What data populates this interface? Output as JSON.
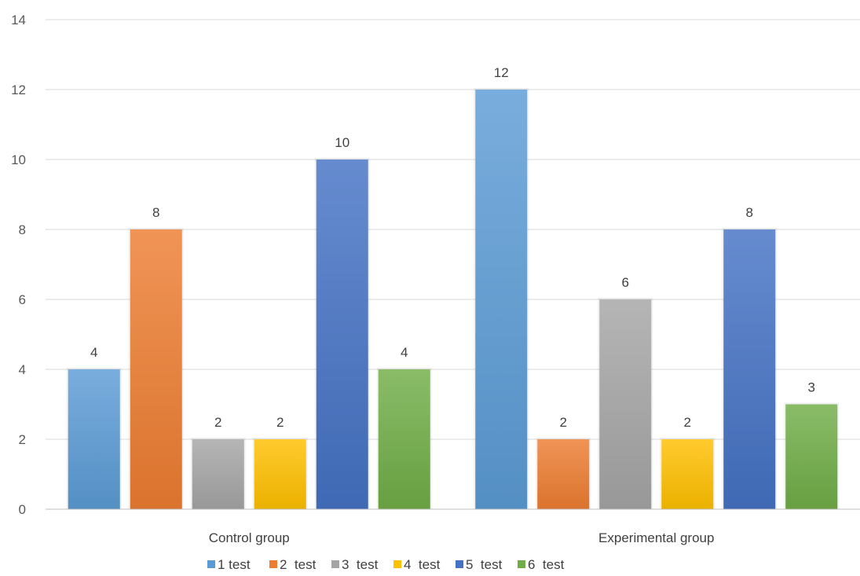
{
  "chart_data": {
    "type": "bar",
    "categories": [
      "Control group",
      "Experimental group"
    ],
    "series": [
      {
        "name": "1 test",
        "values": [
          4,
          12
        ],
        "color": "#5B9BD5"
      },
      {
        "name": "2  test",
        "values": [
          8,
          2
        ],
        "color": "#ED7D31"
      },
      {
        "name": "3  test",
        "values": [
          2,
          6
        ],
        "color": "#A5A5A5"
      },
      {
        "name": "4  test",
        "values": [
          2,
          2
        ],
        "color": "#FFC000"
      },
      {
        "name": "5  test",
        "values": [
          10,
          8
        ],
        "color": "#4472C4"
      },
      {
        "name": "6  test",
        "values": [
          4,
          3
        ],
        "color": "#70AD47"
      }
    ],
    "ylim": [
      0,
      14
    ],
    "yticks": [
      0,
      2,
      4,
      6,
      8,
      10,
      12,
      14
    ],
    "grid": true,
    "data_labels": true,
    "legend_position": "bottom"
  }
}
